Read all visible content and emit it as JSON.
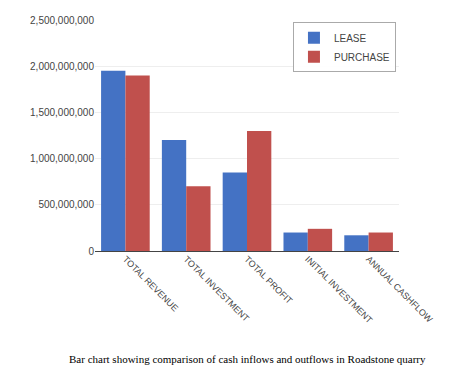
{
  "chart_data": {
    "type": "bar",
    "categories": [
      "TOTAL REVENUE",
      "TOTAL INVESTMENT",
      "TOTAL PROFIT",
      "INITIAL INVESTMENT",
      "ANNUAL CASHFLOW"
    ],
    "series": [
      {
        "name": "LEASE",
        "color": "#4472C4",
        "values": [
          1950000000,
          1200000000,
          850000000,
          200000000,
          170000000
        ]
      },
      {
        "name": "PURCHASE",
        "color": "#C0504D",
        "values": [
          1900000000,
          700000000,
          1300000000,
          240000000,
          200000000
        ]
      }
    ],
    "ylim": [
      0,
      2500000000
    ],
    "yticks": [
      0,
      {
        "value": 500000000,
        "label": "500,000,000"
      },
      {
        "value": 1000000000,
        "label": "1,000,000,000"
      },
      {
        "value": 1500000000,
        "label": "1,500,000,000"
      },
      {
        "value": 2000000000,
        "label": "2,000,000,000"
      },
      {
        "value": 2500000000,
        "label": "2,500,000,000"
      }
    ],
    "grid": true,
    "legend": "upper right",
    "annotations": [
      "Bar chart showing comparison of cash inflows and outflows in Roadstone quarry"
    ]
  }
}
